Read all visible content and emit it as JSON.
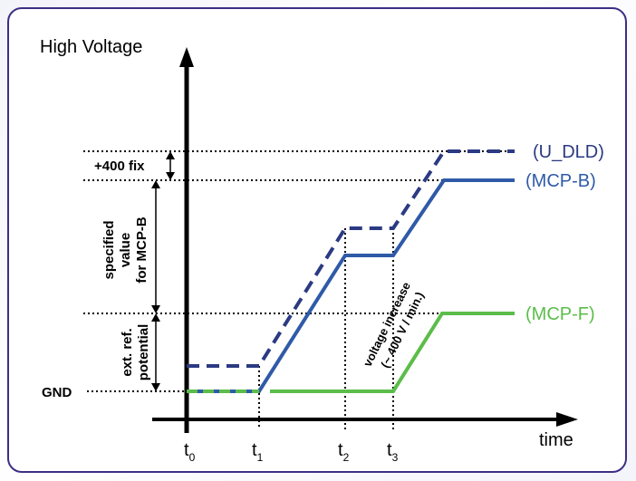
{
  "colors": {
    "frame": "#3c2f86",
    "blue": "#2f5aa8",
    "navy": "#2b3a82",
    "green": "#5bbd4a",
    "axis": "#000000"
  },
  "y_axis_label": "High Voltage",
  "x_axis_label": "time",
  "gnd_label": "GND",
  "dim_labels": {
    "fix400": "+400 fix",
    "specified": [
      "specified",
      "value",
      "for MCP-B"
    ],
    "extref": [
      "ext. ref.",
      "potential"
    ]
  },
  "time_labels": [
    {
      "base": "t",
      "sub": "0"
    },
    {
      "base": "t",
      "sub": "1"
    },
    {
      "base": "t",
      "sub": "2"
    },
    {
      "base": "t",
      "sub": "3"
    }
  ],
  "series_labels": {
    "udld": "(U_DLD)",
    "mcpb": "(MCP-B)",
    "mcpf": "(MCP-F)"
  },
  "ramp_annotation": [
    "voltage increase",
    "(~ 400 V / min.)"
  ]
}
